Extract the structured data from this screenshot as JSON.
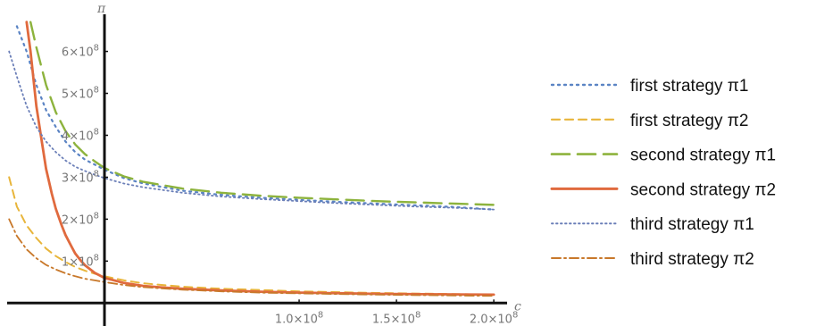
{
  "chart_data": {
    "type": "line",
    "xlabel": "c",
    "ylabel": "π",
    "xlim": [
      -50000000,
      205000000
    ],
    "ylim": [
      -10000000,
      680000000
    ],
    "grid": false,
    "legend_position": "right",
    "x_ticks": [
      {
        "value": 100000000,
        "label": "1.0×10",
        "exp": "8"
      },
      {
        "value": 150000000,
        "label": "1.5×10",
        "exp": "8"
      },
      {
        "value": 200000000,
        "label": "2.0×10",
        "exp": "8"
      }
    ],
    "y_ticks": [
      {
        "value": 100000000,
        "label": "1×10",
        "exp": "8"
      },
      {
        "value": 200000000,
        "label": "2×10",
        "exp": "8"
      },
      {
        "value": 300000000,
        "label": "3×10",
        "exp": "8"
      },
      {
        "value": 400000000,
        "label": "4×10",
        "exp": "8"
      },
      {
        "value": 500000000,
        "label": "5×10",
        "exp": "8"
      },
      {
        "value": 600000000,
        "label": "6×10",
        "exp": "8"
      }
    ],
    "series": [
      {
        "name": "first strategy π1",
        "color": "#5b84c4",
        "dash": "2,5",
        "width": 2.2,
        "x": [
          -45000000,
          -40000000,
          -35000000,
          -30000000,
          -25000000,
          -20000000,
          -15000000,
          -10000000,
          -5000000,
          0,
          10000000,
          20000000,
          40000000,
          60000000,
          80000000,
          100000000,
          120000000,
          140000000,
          160000000,
          180000000,
          200000000
        ],
        "y": [
          660000000,
          600000000,
          520000000,
          460000000,
          420000000,
          385000000,
          360000000,
          342000000,
          330000000,
          318000000,
          298000000,
          285000000,
          268000000,
          258000000,
          251000000,
          246000000,
          241000000,
          237000000,
          233000000,
          229000000,
          223000000
        ]
      },
      {
        "name": "first strategy π2",
        "color": "#e8b53a",
        "dash": "9,6",
        "width": 2,
        "x": [
          -49000000,
          -45000000,
          -40000000,
          -35000000,
          -30000000,
          -25000000,
          -20000000,
          -15000000,
          -10000000,
          -5000000,
          0,
          10000000,
          20000000,
          40000000,
          60000000,
          80000000,
          100000000,
          140000000,
          200000000
        ],
        "y": [
          300000000,
          230000000,
          185000000,
          155000000,
          130000000,
          112000000,
          98000000,
          86000000,
          77000000,
          70000000,
          64000000,
          54000000,
          47000000,
          39000000,
          34000000,
          31000000,
          28000000,
          24000000,
          20000000
        ]
      },
      {
        "name": "second strategy π1",
        "color": "#8db33d",
        "dash": "20,9",
        "width": 2.4,
        "x": [
          -38000000,
          -35000000,
          -30000000,
          -25000000,
          -20000000,
          -15000000,
          -10000000,
          -5000000,
          0,
          10000000,
          20000000,
          40000000,
          60000000,
          80000000,
          100000000,
          120000000,
          140000000,
          160000000,
          180000000,
          200000000
        ],
        "y": [
          670000000,
          610000000,
          520000000,
          455000000,
          410000000,
          378000000,
          355000000,
          338000000,
          322000000,
          302000000,
          289000000,
          273000000,
          263000000,
          256000000,
          251000000,
          247000000,
          243000000,
          240000000,
          237000000,
          234000000
        ]
      },
      {
        "name": "second strategy π2",
        "color": "#e06a3e",
        "dash": "",
        "width": 2.8,
        "x": [
          -40000000,
          -38000000,
          -35000000,
          -32000000,
          -30000000,
          -27000000,
          -25000000,
          -22000000,
          -20000000,
          -17000000,
          -15000000,
          -12000000,
          -10000000,
          -5000000,
          0,
          10000000,
          20000000,
          30000000,
          40000000,
          60000000,
          80000000,
          100000000,
          140000000,
          200000000
        ],
        "y": [
          670000000,
          600000000,
          470000000,
          380000000,
          320000000,
          260000000,
          225000000,
          185000000,
          162000000,
          135000000,
          118000000,
          100000000,
          90000000,
          72000000,
          60000000,
          48000000,
          41000000,
          37000000,
          34000000,
          30000000,
          27000000,
          25000000,
          22000000,
          20000000
        ]
      },
      {
        "name": "third strategy π1",
        "color": "#6b7fb8",
        "dash": "1.5,3.5",
        "width": 1.8,
        "x": [
          -49000000,
          -45000000,
          -40000000,
          -35000000,
          -30000000,
          -25000000,
          -20000000,
          -15000000,
          -10000000,
          -5000000,
          0,
          10000000,
          20000000,
          40000000,
          60000000,
          80000000,
          100000000,
          120000000,
          140000000,
          160000000,
          180000000,
          200000000
        ],
        "y": [
          600000000,
          540000000,
          470000000,
          420000000,
          385000000,
          360000000,
          340000000,
          325000000,
          315000000,
          306000000,
          298000000,
          285000000,
          276000000,
          263000000,
          254000000,
          248000000,
          243000000,
          238000000,
          234000000,
          230000000,
          227000000,
          223000000
        ]
      },
      {
        "name": "third strategy π2",
        "color": "#c8782a",
        "dash": "10,4,2,4",
        "width": 1.8,
        "x": [
          -49000000,
          -45000000,
          -40000000,
          -35000000,
          -30000000,
          -25000000,
          -20000000,
          -15000000,
          -10000000,
          -5000000,
          0,
          10000000,
          20000000,
          40000000,
          60000000,
          80000000,
          100000000,
          140000000,
          200000000
        ],
        "y": [
          200000000,
          160000000,
          128000000,
          107000000,
          91000000,
          80000000,
          71000000,
          64000000,
          58000000,
          54000000,
          50000000,
          43000000,
          38000000,
          32000000,
          28000000,
          25000000,
          23000000,
          20000000,
          17000000
        ]
      }
    ]
  }
}
